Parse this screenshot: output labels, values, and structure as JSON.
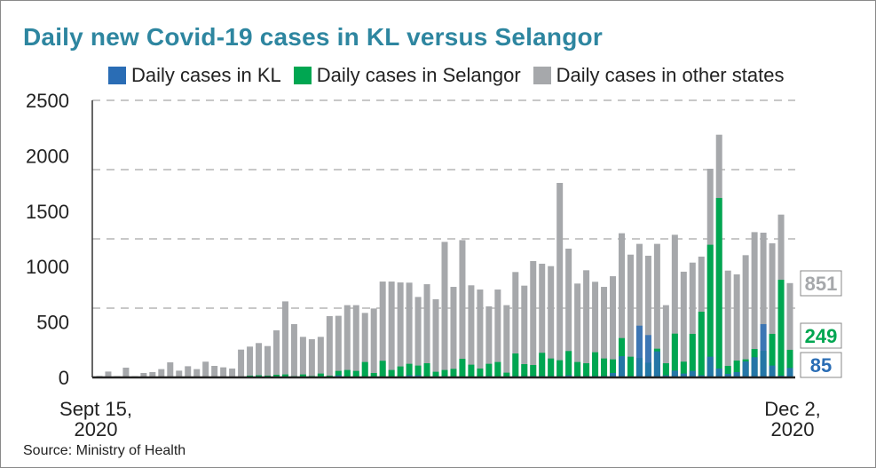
{
  "chart_data": {
    "type": "bar",
    "mode": "overlaid",
    "title": "Daily new Covid-19 cases in KL versus Selangor",
    "source": "Source: Ministry of Health",
    "x_tick_labels": [
      [
        "Sept 15,",
        "2020"
      ],
      [
        "Dec 2,",
        "2020"
      ]
    ],
    "date_range": [
      "2020-09-15",
      "2020-12-02"
    ],
    "yticks": [
      0,
      500,
      1000,
      1500,
      2000,
      2500
    ],
    "ylim": [
      0,
      2500
    ],
    "grid": true,
    "legend_position": "top",
    "series": [
      {
        "name": "Daily cases in KL",
        "color": "#2a6db5",
        "values": [
          5,
          5,
          3,
          5,
          3,
          5,
          5,
          6,
          8,
          5,
          5,
          5,
          6,
          5,
          5,
          5,
          8,
          6,
          6,
          6,
          6,
          6,
          5,
          6,
          6,
          8,
          6,
          19,
          8,
          8,
          8,
          8,
          8,
          8,
          8,
          19,
          19,
          8,
          10,
          10,
          8,
          8,
          8,
          8,
          12,
          8,
          5,
          10,
          10,
          12,
          12,
          10,
          10,
          19,
          10,
          12,
          12,
          12,
          40,
          192,
          10,
          467,
          382,
          235,
          19,
          61,
          35,
          59,
          19,
          187,
          80,
          32,
          48,
          144,
          182,
          481,
          107,
          16,
          85
        ]
      },
      {
        "name": "Daily cases in Selangor",
        "color": "#00a651",
        "values": [
          3,
          3,
          2,
          3,
          2,
          3,
          3,
          3,
          3,
          3,
          3,
          3,
          3,
          3,
          3,
          5,
          8,
          16,
          19,
          16,
          24,
          27,
          11,
          27,
          13,
          35,
          16,
          59,
          67,
          59,
          139,
          40,
          150,
          67,
          99,
          123,
          107,
          128,
          51,
          67,
          77,
          168,
          115,
          80,
          123,
          139,
          43,
          216,
          120,
          112,
          222,
          171,
          155,
          238,
          139,
          128,
          227,
          171,
          163,
          355,
          187,
          175,
          133,
          259,
          128,
          395,
          142,
          393,
          593,
          1197,
          1619,
          104,
          152,
          163,
          256,
          240,
          393,
          881,
          249
        ]
      },
      {
        "name": "Daily cases in other states",
        "color": "#a6a8ab",
        "values": [
          13,
          53,
          11,
          88,
          11,
          40,
          48,
          75,
          136,
          61,
          101,
          75,
          142,
          104,
          91,
          80,
          251,
          278,
          310,
          283,
          425,
          686,
          481,
          366,
          345,
          366,
          553,
          556,
          652,
          652,
          582,
          622,
          865,
          865,
          857,
          855,
          726,
          841,
          705,
          1223,
          817,
          1239,
          831,
          793,
          641,
          793,
          652,
          951,
          828,
          1050,
          1026,
          1004,
          1755,
          1162,
          847,
          967,
          863,
          817,
          913,
          1301,
          1108,
          1205,
          1098,
          1205,
          652,
          1287,
          954,
          1036,
          1090,
          1883,
          2190,
          964,
          930,
          1103,
          1311,
          1306,
          1210,
          1469,
          851
        ]
      }
    ],
    "annotations": [
      {
        "text": "851",
        "series": "Daily cases in other states",
        "color": "#a6a8ab"
      },
      {
        "text": "249",
        "series": "Daily cases in Selangor",
        "color": "#00a651"
      },
      {
        "text": "85",
        "series": "Daily cases in KL",
        "color": "#2a6db5"
      }
    ]
  }
}
